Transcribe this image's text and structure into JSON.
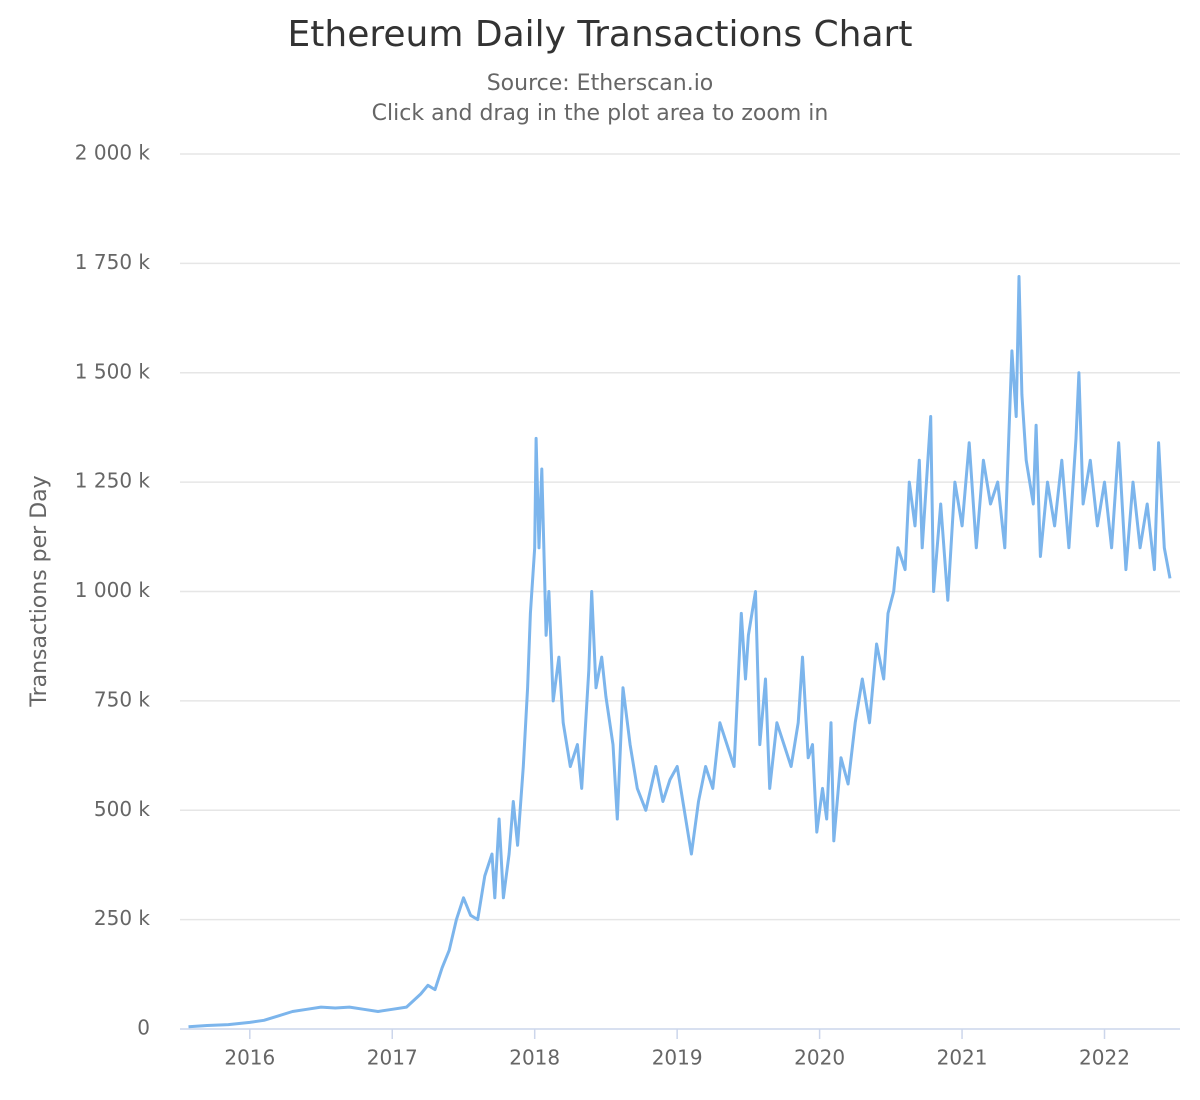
{
  "chart_data": {
    "type": "line",
    "title": "Ethereum Daily Transactions Chart",
    "subtitle": [
      "Source: Etherscan.io",
      "Click and drag in the plot area to zoom in"
    ],
    "y_label": "Transactions per Day",
    "color": "#7cb5ec",
    "grid": true,
    "xlim": [
      2015.51,
      2022.53
    ],
    "xticks": [
      2016,
      2017,
      2018,
      2019,
      2020,
      2021,
      2022
    ],
    "ylim": [
      0,
      2000000
    ],
    "yticks": [
      0,
      {
        "value": 250000,
        "label": "250 k"
      },
      {
        "value": 500000,
        "label": "500 k"
      },
      {
        "value": 750000,
        "label": "750 k"
      },
      {
        "value": 1000000,
        "label": "1 000 k"
      },
      {
        "value": 1250000,
        "label": "1 250 k"
      },
      {
        "value": 1500000,
        "label": "1 500 k"
      },
      {
        "value": 1750000,
        "label": "1 750 k"
      },
      {
        "value": 2000000,
        "label": "2 000 k"
      }
    ],
    "x": [
      2015.57,
      2015.7,
      2015.85,
      2016.0,
      2016.1,
      2016.2,
      2016.3,
      2016.4,
      2016.5,
      2016.6,
      2016.7,
      2016.8,
      2016.9,
      2017.0,
      2017.1,
      2017.2,
      2017.25,
      2017.3,
      2017.35,
      2017.4,
      2017.45,
      2017.5,
      2017.55,
      2017.6,
      2017.65,
      2017.7,
      2017.72,
      2017.75,
      2017.78,
      2017.82,
      2017.85,
      2017.88,
      2017.92,
      2017.95,
      2017.97,
      2018.0,
      2018.01,
      2018.03,
      2018.05,
      2018.08,
      2018.1,
      2018.13,
      2018.17,
      2018.2,
      2018.25,
      2018.3,
      2018.33,
      2018.38,
      2018.4,
      2018.43,
      2018.47,
      2018.5,
      2018.55,
      2018.58,
      2018.62,
      2018.67,
      2018.72,
      2018.78,
      2018.85,
      2018.9,
      2018.95,
      2019.0,
      2019.05,
      2019.1,
      2019.15,
      2019.2,
      2019.25,
      2019.3,
      2019.35,
      2019.4,
      2019.45,
      2019.48,
      2019.5,
      2019.55,
      2019.58,
      2019.62,
      2019.65,
      2019.7,
      2019.75,
      2019.8,
      2019.85,
      2019.88,
      2019.92,
      2019.95,
      2019.98,
      2020.02,
      2020.05,
      2020.08,
      2020.1,
      2020.15,
      2020.2,
      2020.25,
      2020.3,
      2020.35,
      2020.4,
      2020.45,
      2020.48,
      2020.52,
      2020.55,
      2020.6,
      2020.63,
      2020.67,
      2020.7,
      2020.72,
      2020.78,
      2020.8,
      2020.85,
      2020.9,
      2020.95,
      2021.0,
      2021.05,
      2021.1,
      2021.15,
      2021.2,
      2021.25,
      2021.3,
      2021.35,
      2021.38,
      2021.4,
      2021.42,
      2021.45,
      2021.5,
      2021.52,
      2021.55,
      2021.6,
      2021.65,
      2021.7,
      2021.75,
      2021.8,
      2021.82,
      2021.85,
      2021.9,
      2021.95,
      2022.0,
      2022.05,
      2022.1,
      2022.15,
      2022.2,
      2022.25,
      2022.3,
      2022.35,
      2022.38,
      2022.42,
      2022.46
    ],
    "values": [
      5000,
      8000,
      10000,
      15000,
      20000,
      30000,
      40000,
      45000,
      50000,
      48000,
      50000,
      45000,
      40000,
      45000,
      50000,
      80000,
      100000,
      90000,
      140000,
      180000,
      250000,
      300000,
      260000,
      250000,
      350000,
      400000,
      300000,
      480000,
      300000,
      400000,
      520000,
      420000,
      600000,
      780000,
      950000,
      1100000,
      1350000,
      1100000,
      1280000,
      900000,
      1000000,
      750000,
      850000,
      700000,
      600000,
      650000,
      550000,
      820000,
      1000000,
      780000,
      850000,
      760000,
      650000,
      480000,
      780000,
      650000,
      550000,
      500000,
      600000,
      520000,
      570000,
      600000,
      500000,
      400000,
      520000,
      600000,
      550000,
      700000,
      650000,
      600000,
      950000,
      800000,
      900000,
      1000000,
      650000,
      800000,
      550000,
      700000,
      650000,
      600000,
      700000,
      850000,
      620000,
      650000,
      450000,
      550000,
      480000,
      700000,
      430000,
      620000,
      560000,
      700000,
      800000,
      700000,
      880000,
      800000,
      950000,
      1000000,
      1100000,
      1050000,
      1250000,
      1150000,
      1300000,
      1100000,
      1400000,
      1000000,
      1200000,
      980000,
      1250000,
      1150000,
      1340000,
      1100000,
      1300000,
      1200000,
      1250000,
      1100000,
      1550000,
      1400000,
      1720000,
      1450000,
      1300000,
      1200000,
      1380000,
      1080000,
      1250000,
      1150000,
      1300000,
      1100000,
      1350000,
      1500000,
      1200000,
      1300000,
      1150000,
      1250000,
      1100000,
      1340000,
      1050000,
      1250000,
      1100000,
      1200000,
      1050000,
      1340000,
      1100000,
      1030000
    ]
  }
}
